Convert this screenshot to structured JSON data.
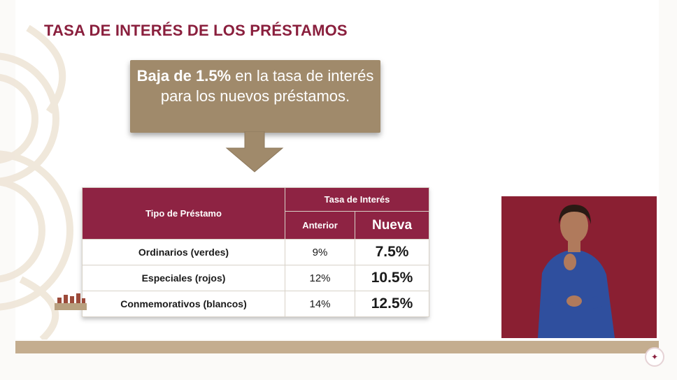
{
  "title": "TASA DE INTERÉS DE LOS PRÉSTAMOS",
  "callout": {
    "bold": "Baja de 1.5%",
    "rest": " en la tasa de interés para los nuevos préstamos."
  },
  "table": {
    "col_type": "Tipo de Préstamo",
    "col_rate": "Tasa de Interés",
    "col_before": "Anterior",
    "col_new": "Nueva",
    "rows": [
      {
        "type": "Ordinarios (verdes)",
        "before": "9%",
        "new": "7.5%"
      },
      {
        "type": "Especiales (rojos)",
        "before": "12%",
        "new": "10.5%"
      },
      {
        "type": "Conmemorativos (blancos)",
        "before": "14%",
        "new": "12.5%"
      }
    ]
  },
  "colors": {
    "title": "#8a1f3d",
    "header": "#8e2343",
    "callout": "#a08a6b",
    "bar": "#c4ad8f"
  },
  "icons": {
    "arrow": "down-arrow-icon",
    "corner": "government-seal-icon",
    "stamp": "building-logo-icon"
  }
}
